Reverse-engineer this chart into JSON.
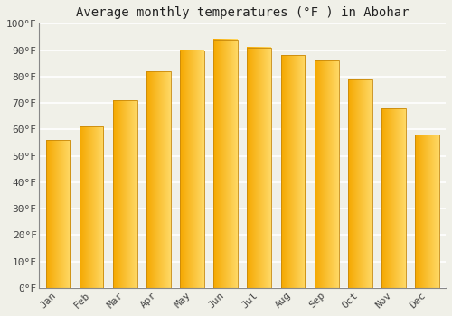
{
  "title": "Average monthly temperatures (°F ) in Abohar",
  "months": [
    "Jan",
    "Feb",
    "Mar",
    "Apr",
    "May",
    "Jun",
    "Jul",
    "Aug",
    "Sep",
    "Oct",
    "Nov",
    "Dec"
  ],
  "values": [
    56,
    61,
    71,
    82,
    90,
    94,
    91,
    88,
    86,
    79,
    68,
    58
  ],
  "ylim": [
    0,
    100
  ],
  "yticks": [
    0,
    10,
    20,
    30,
    40,
    50,
    60,
    70,
    80,
    90,
    100
  ],
  "ytick_labels": [
    "0°F",
    "10°F",
    "20°F",
    "30°F",
    "40°F",
    "50°F",
    "60°F",
    "70°F",
    "80°F",
    "90°F",
    "100°F"
  ],
  "bar_color_left": "#F5A800",
  "bar_color_right": "#FFD966",
  "bar_edge_color": "#C8880A",
  "background_color": "#F0F0E8",
  "plot_bg_color": "#F0F0E8",
  "grid_color": "#FFFFFF",
  "title_fontsize": 10,
  "tick_fontsize": 8,
  "figsize": [
    5.0,
    3.5
  ],
  "dpi": 100,
  "bar_width": 0.72
}
